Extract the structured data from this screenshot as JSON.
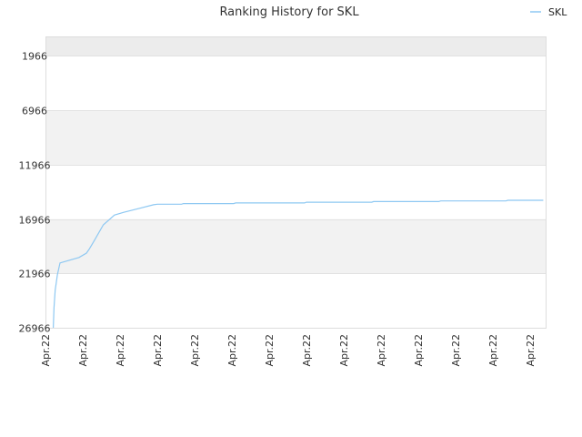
{
  "chart_data": {
    "type": "line",
    "title": "Ranking History for SKL",
    "xlabel": "",
    "ylabel": "",
    "ylim": [
      26966,
      166
    ],
    "y_reversed": true,
    "y_ticks": [
      "1966",
      "6966",
      "11966",
      "16966",
      "21966",
      "26966"
    ],
    "x_ticks": [
      "Apr.22",
      "Apr.22",
      "Apr.22",
      "Apr.22",
      "Apr.22",
      "Apr.22",
      "Apr.22",
      "Apr.22",
      "Apr.22",
      "Apr.22",
      "Apr.22",
      "Apr.22",
      "Apr.22",
      "Apr.22"
    ],
    "legend": {
      "position": "top-right",
      "entries": [
        "SKL"
      ]
    },
    "grid": true,
    "colors": {
      "series": "#8ec8f2",
      "band": "#f2f2f2",
      "top_band": "#ececec",
      "grid": "#e2e2e2"
    },
    "series": [
      {
        "name": "SKL",
        "points": [
          [
            0.21,
            26966
          ],
          [
            0.23,
            25100
          ],
          [
            0.26,
            23500
          ],
          [
            0.29,
            22800
          ],
          [
            0.32,
            22100
          ],
          [
            0.39,
            21000
          ],
          [
            0.9,
            20500
          ],
          [
            1.1,
            20100
          ],
          [
            1.18,
            19700
          ],
          [
            1.3,
            19000
          ],
          [
            1.55,
            17500
          ],
          [
            1.85,
            16600
          ],
          [
            2.1,
            16350
          ],
          [
            2.5,
            16000
          ],
          [
            2.9,
            15650
          ],
          [
            3.0,
            15600
          ],
          [
            3.3,
            15600
          ],
          [
            3.65,
            15600
          ],
          [
            3.7,
            15540
          ],
          [
            4.5,
            15540
          ],
          [
            5.05,
            15540
          ],
          [
            5.1,
            15480
          ],
          [
            6.95,
            15480
          ],
          [
            7.0,
            15420
          ],
          [
            8.75,
            15420
          ],
          [
            8.8,
            15360
          ],
          [
            10.55,
            15360
          ],
          [
            10.6,
            15300
          ],
          [
            12.35,
            15300
          ],
          [
            12.4,
            15240
          ],
          [
            13.35,
            15240
          ]
        ]
      }
    ]
  }
}
